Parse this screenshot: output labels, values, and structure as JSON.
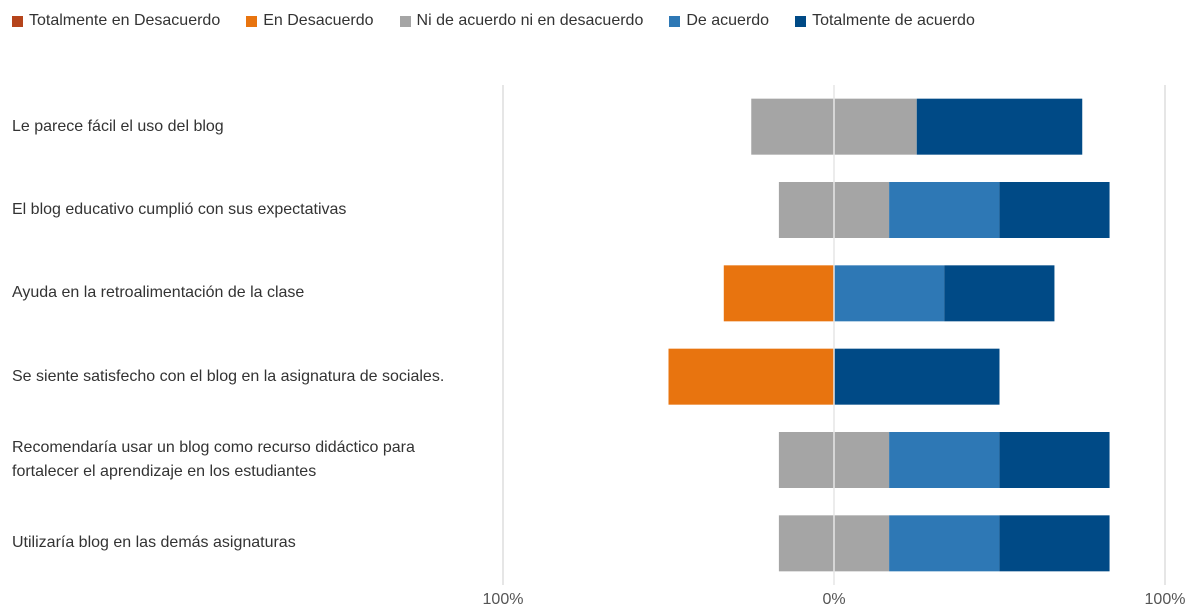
{
  "chart_data": {
    "type": "diverging_bar",
    "categories": [
      "Le parece fácil el uso del blog",
      "El blog educativo cumplió con sus expectativas",
      "Ayuda en la retroalimentación de la clase",
      "Se siente satisfecho con el blog en la asignatura de sociales.",
      "Recomendaría usar un blog como recurso didáctico para fortalecer el aprendizaje en los estudiantes",
      "Utilizaría blog en las demás asignaturas"
    ],
    "series": [
      {
        "name": "Totalmente en Desacuerdo",
        "color": "#b5441b",
        "values": [
          0,
          0,
          0,
          0,
          0,
          0
        ]
      },
      {
        "name": "En Desacuerdo",
        "color": "#e8740f",
        "values": [
          0,
          0,
          33.3,
          50,
          0,
          0
        ]
      },
      {
        "name": "Ni de acuerdo ni en desacuerdo",
        "color": "#a5a5a5",
        "values": [
          50,
          33.3,
          0,
          0,
          33.3,
          33.3
        ]
      },
      {
        "name": "De acuerdo",
        "color": "#2e78b5",
        "values": [
          0,
          33.3,
          33.3,
          0,
          33.3,
          33.3
        ]
      },
      {
        "name": "Totalmente de acuerdo",
        "color": "#004a86",
        "values": [
          50,
          33.3,
          33.3,
          50,
          33.3,
          33.3
        ]
      }
    ],
    "xlim": [
      -100,
      100
    ],
    "xticks": [
      {
        "value": -100,
        "label": "100%"
      },
      {
        "value": 0,
        "label": "0%"
      },
      {
        "value": 100,
        "label": "100%"
      }
    ],
    "grid": true
  }
}
